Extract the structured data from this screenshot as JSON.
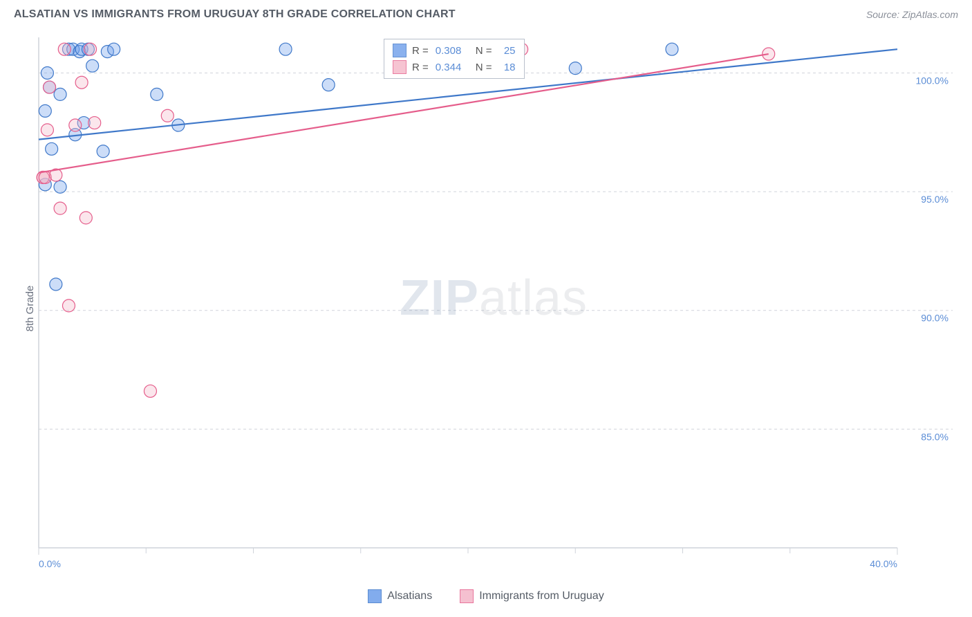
{
  "header": {
    "title": "ALSATIAN VS IMMIGRANTS FROM URUGUAY 8TH GRADE CORRELATION CHART",
    "source_prefix": "Source: ",
    "source_name": "ZipAtlas.com"
  },
  "chart": {
    "type": "scatter",
    "y_label": "8th Grade",
    "background_color": "#ffffff",
    "grid_color": "#d0d4db",
    "grid_dash": "4 4",
    "axis_color": "#cfd3da",
    "tick_color": "#5b8dd6",
    "xlim": [
      0,
      40
    ],
    "ylim": [
      80,
      101.5
    ],
    "x_ticks": [
      {
        "v": 0,
        "label": "0.0%"
      },
      {
        "v": 40,
        "label": "40.0%"
      }
    ],
    "x_minor_ticks": [
      5,
      10,
      15,
      20,
      25,
      30,
      35
    ],
    "y_ticks": [
      {
        "v": 100,
        "label": "100.0%"
      },
      {
        "v": 95,
        "label": "95.0%"
      },
      {
        "v": 90,
        "label": "90.0%"
      },
      {
        "v": 85,
        "label": "85.0%"
      }
    ],
    "marker_radius": 9,
    "marker_stroke_width": 1.2,
    "marker_fill_opacity": 0.35,
    "trend_line_width": 2.2,
    "series": [
      {
        "id": "alsatians",
        "name": "Alsatians",
        "color": "#6d9eeb",
        "stroke": "#3f78c9",
        "r_value": "0.308",
        "n_value": "25",
        "trend": {
          "x1": 0,
          "y1": 97.2,
          "x2": 40,
          "y2": 101.0
        },
        "points": [
          {
            "x": 0.3,
            "y": 98.4
          },
          {
            "x": 0.3,
            "y": 95.3
          },
          {
            "x": 0.4,
            "y": 100.0
          },
          {
            "x": 0.5,
            "y": 99.4
          },
          {
            "x": 0.6,
            "y": 96.8
          },
          {
            "x": 0.8,
            "y": 91.1
          },
          {
            "x": 1.0,
            "y": 99.1
          },
          {
            "x": 1.0,
            "y": 95.2
          },
          {
            "x": 1.4,
            "y": 101.0
          },
          {
            "x": 1.6,
            "y": 101.0
          },
          {
            "x": 1.7,
            "y": 97.4
          },
          {
            "x": 1.9,
            "y": 100.9
          },
          {
            "x": 2.0,
            "y": 101.0
          },
          {
            "x": 2.1,
            "y": 97.9
          },
          {
            "x": 2.3,
            "y": 101.0
          },
          {
            "x": 2.5,
            "y": 100.3
          },
          {
            "x": 3.0,
            "y": 96.7
          },
          {
            "x": 3.2,
            "y": 100.9
          },
          {
            "x": 3.5,
            "y": 101.0
          },
          {
            "x": 5.5,
            "y": 99.1
          },
          {
            "x": 6.5,
            "y": 97.8
          },
          {
            "x": 11.5,
            "y": 101.0
          },
          {
            "x": 13.5,
            "y": 99.5
          },
          {
            "x": 25.0,
            "y": 100.2
          },
          {
            "x": 29.5,
            "y": 101.0
          }
        ]
      },
      {
        "id": "uruguay",
        "name": "Immigrants from Uruguay",
        "color": "#f4b6c8",
        "stroke": "#e55d8b",
        "r_value": "0.344",
        "n_value": "18",
        "trend": {
          "x1": 0,
          "y1": 95.8,
          "x2": 34,
          "y2": 100.8
        },
        "points": [
          {
            "x": 0.2,
            "y": 95.6
          },
          {
            "x": 0.2,
            "y": 95.6
          },
          {
            "x": 0.3,
            "y": 95.6
          },
          {
            "x": 0.4,
            "y": 97.6
          },
          {
            "x": 0.5,
            "y": 99.4
          },
          {
            "x": 0.8,
            "y": 95.7
          },
          {
            "x": 1.0,
            "y": 94.3
          },
          {
            "x": 1.2,
            "y": 101.0
          },
          {
            "x": 1.4,
            "y": 90.2
          },
          {
            "x": 1.7,
            "y": 97.8
          },
          {
            "x": 2.0,
            "y": 99.6
          },
          {
            "x": 2.2,
            "y": 93.9
          },
          {
            "x": 2.4,
            "y": 101.0
          },
          {
            "x": 2.6,
            "y": 97.9
          },
          {
            "x": 5.2,
            "y": 86.6
          },
          {
            "x": 6.0,
            "y": 98.2
          },
          {
            "x": 22.5,
            "y": 101.0
          },
          {
            "x": 34.0,
            "y": 100.8
          }
        ]
      }
    ]
  },
  "legend_top": {
    "r_label": "R =",
    "n_label": "N ="
  },
  "watermark": {
    "part1": "ZIP",
    "part2": "atlas"
  }
}
